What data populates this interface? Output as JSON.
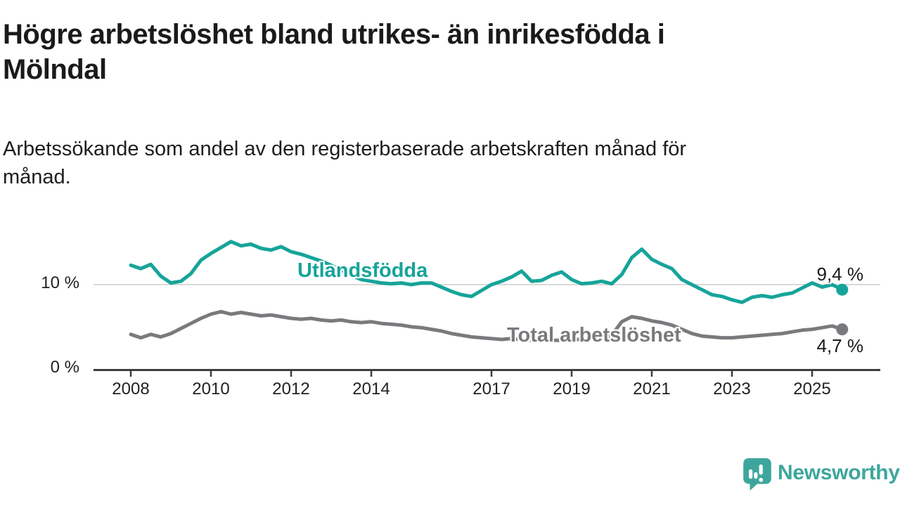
{
  "header": {
    "title_lines": [
      "Högre arbetslöshet bland utrikes- än inrikesfödda i",
      "Mölndal"
    ],
    "subtitle_lines": [
      "Arbetssökande som andel av den registerbaserade arbetskraften månad för",
      "månad."
    ]
  },
  "chart_data": {
    "type": "line",
    "unit": "%",
    "x_start": 2008.0,
    "x_step_years": 0.25,
    "x_end": 2025.75,
    "xlim": [
      2007.1,
      2026.9
    ],
    "ylim": [
      0,
      18.75
    ],
    "grid": "single horizontal gridline at 10 %",
    "legend_position": "inline labels on lines",
    "x_ticks": [
      2008,
      2010,
      2012,
      2014,
      2017,
      2019,
      2021,
      2023,
      2025
    ],
    "y_ticks": [
      {
        "value": 0,
        "label": "0 %"
      },
      {
        "value": 10,
        "label": "10 %"
      }
    ],
    "colors": {
      "axis": "#3d3d3d",
      "grid": "#d9d9d9",
      "value_text": "#1b1b1b"
    },
    "series": [
      {
        "name": "Utlandsfödda",
        "color": "#16a49a",
        "end_label": "9,4 %",
        "end_value": 9.4,
        "values": [
          12.3,
          11.9,
          12.4,
          11.0,
          10.2,
          10.4,
          11.3,
          12.9,
          13.7,
          14.4,
          15.1,
          14.6,
          14.8,
          14.3,
          14.1,
          14.5,
          13.9,
          13.6,
          13.2,
          12.8,
          12.3,
          11.7,
          11.1,
          10.6,
          10.4,
          10.2,
          10.1,
          10.2,
          10.0,
          10.2,
          10.2,
          9.7,
          9.2,
          8.8,
          8.6,
          9.3,
          10.0,
          10.4,
          10.9,
          11.6,
          10.4,
          10.5,
          11.1,
          11.5,
          10.6,
          10.1,
          10.2,
          10.4,
          10.1,
          11.2,
          13.2,
          14.2,
          13.0,
          12.4,
          11.9,
          10.6,
          10.0,
          9.4,
          8.8,
          8.6,
          8.2,
          7.9,
          8.5,
          8.7,
          8.5,
          8.8,
          9.0,
          9.6,
          10.2,
          9.7,
          10.0,
          9.4
        ]
      },
      {
        "name": "Total arbetslöshet",
        "color": "#7a7a7e",
        "end_label": "4,7 %",
        "end_value": 4.7,
        "values": [
          4.1,
          3.7,
          4.1,
          3.8,
          4.2,
          4.8,
          5.4,
          6.0,
          6.5,
          6.8,
          6.5,
          6.7,
          6.5,
          6.3,
          6.4,
          6.2,
          6.0,
          5.9,
          6.0,
          5.8,
          5.7,
          5.8,
          5.6,
          5.5,
          5.6,
          5.4,
          5.3,
          5.2,
          5.0,
          4.9,
          4.7,
          4.5,
          4.2,
          4.0,
          3.8,
          3.7,
          3.6,
          3.5,
          3.6,
          3.5,
          3.4,
          3.5,
          3.4,
          3.4,
          3.5,
          3.5,
          3.6,
          3.7,
          4.0,
          5.6,
          6.2,
          6.0,
          5.7,
          5.5,
          5.2,
          4.7,
          4.2,
          3.9,
          3.8,
          3.7,
          3.7,
          3.8,
          3.9,
          4.0,
          4.1,
          4.2,
          4.4,
          4.6,
          4.7,
          4.9,
          5.1,
          4.7
        ]
      }
    ]
  },
  "branding": {
    "logo_text": "Newsworthy",
    "logo_color": "#3da69c",
    "logo_icon": "speech-bubble-bar-chart-exclamation-icon"
  }
}
